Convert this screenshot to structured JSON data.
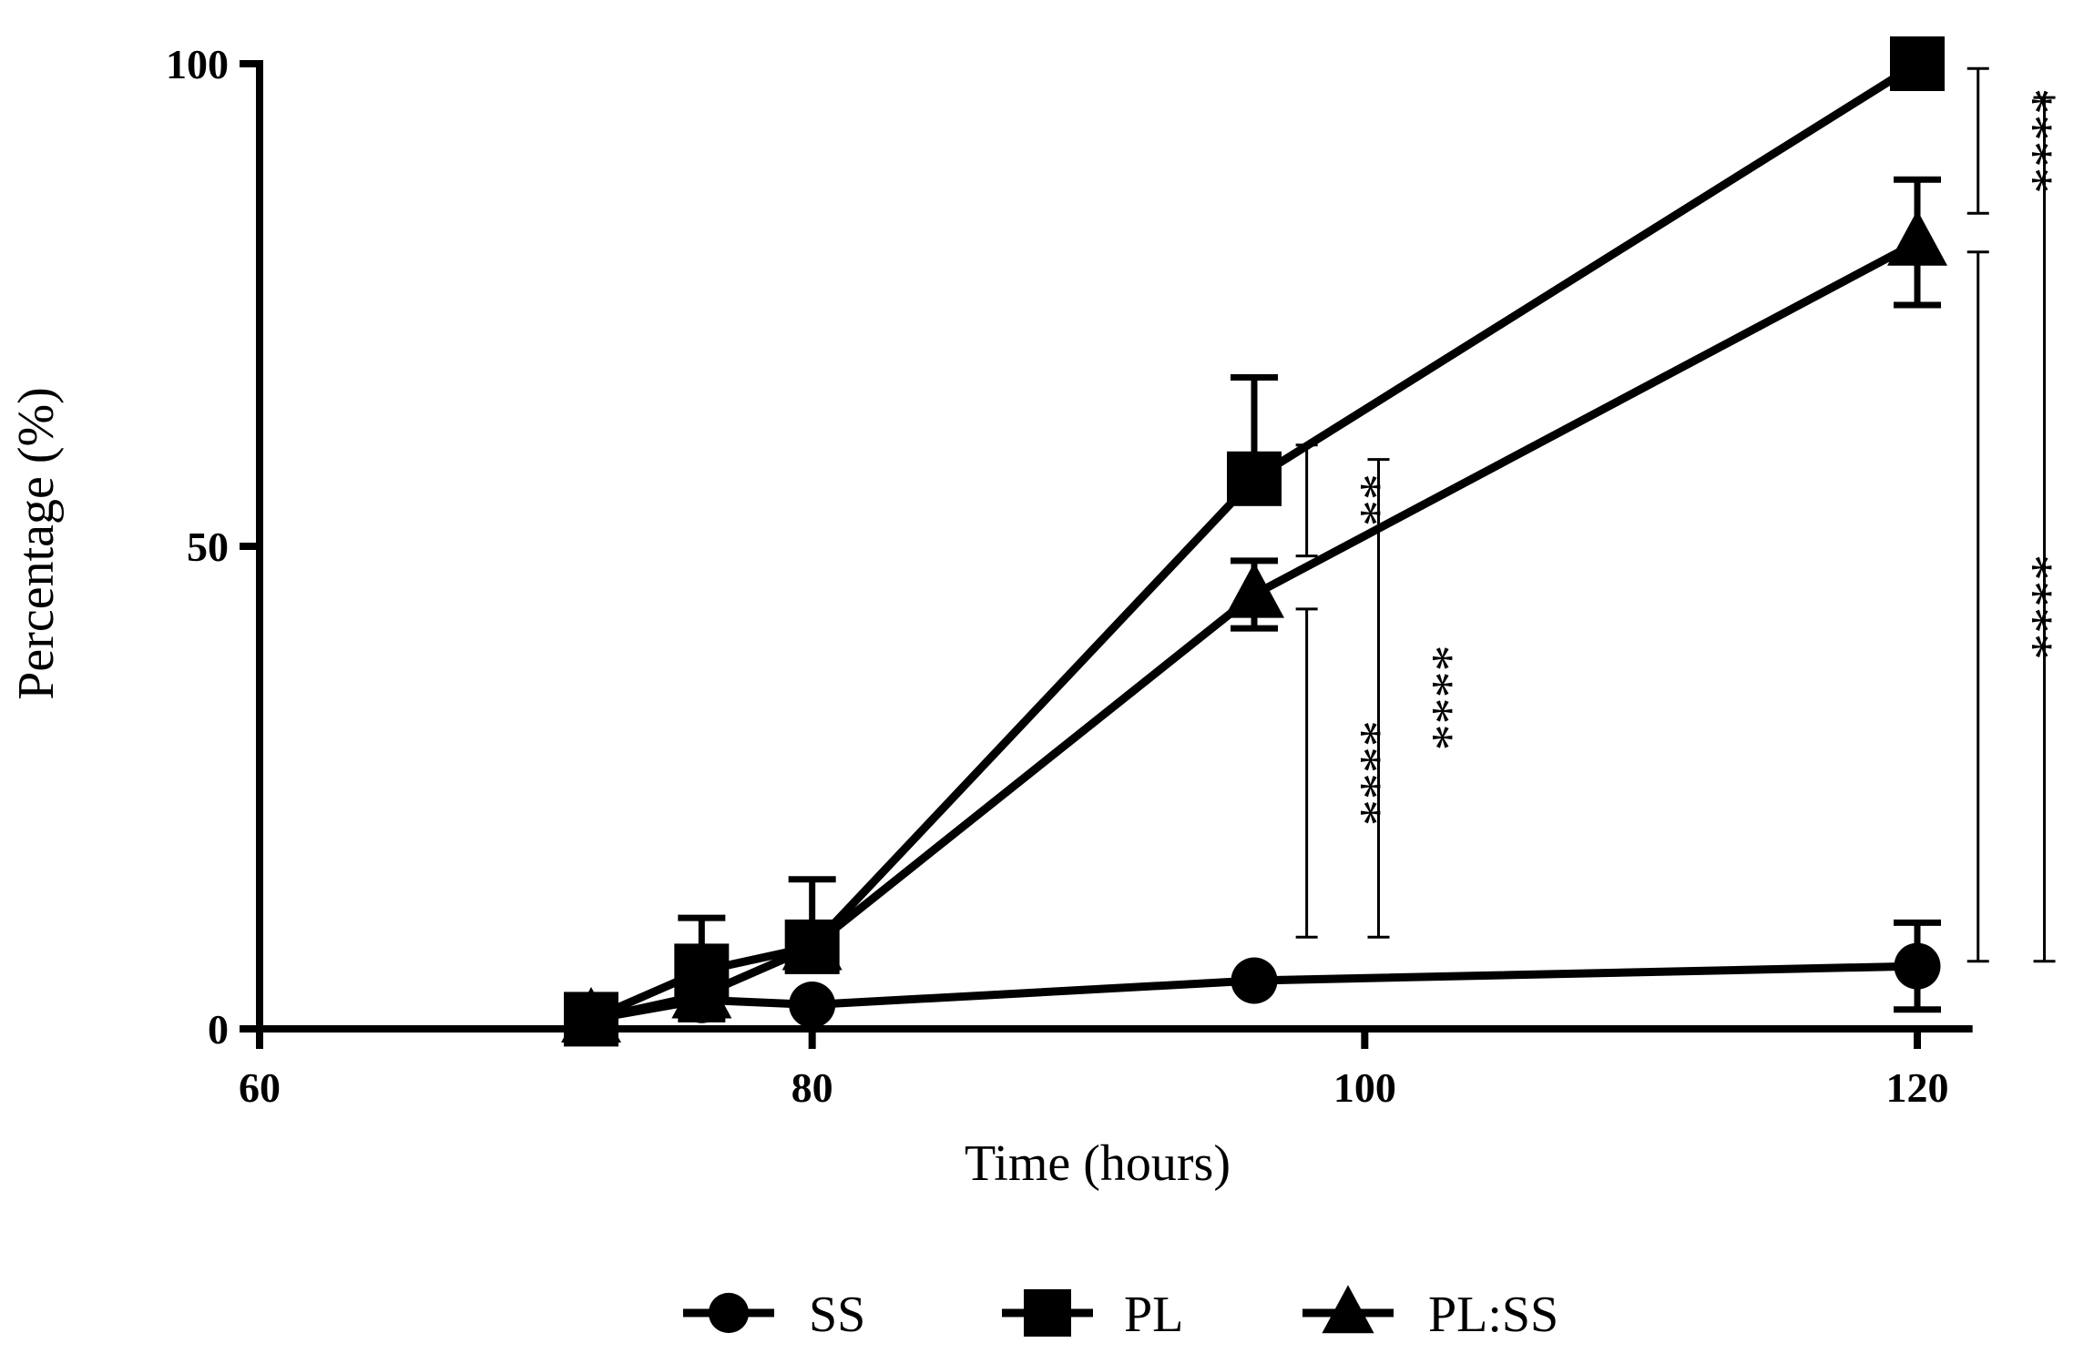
{
  "chart_data": {
    "type": "line",
    "title": "",
    "xlabel": "Time (hours)",
    "ylabel": "Percentage (%)",
    "xlim": [
      60,
      122
    ],
    "ylim": [
      0,
      100
    ],
    "xticks": [
      60,
      80,
      100,
      120
    ],
    "yticks": [
      0,
      50,
      100
    ],
    "grid": false,
    "legend_position": "bottom",
    "series": [
      {
        "name": "SS",
        "marker": "circle",
        "x": [
          72,
          76,
          80,
          96,
          120
        ],
        "y": [
          1,
          3,
          2.5,
          5,
          6.5
        ],
        "err": [
          0,
          2,
          0,
          0,
          4.5
        ]
      },
      {
        "name": "PL",
        "marker": "square",
        "x": [
          72,
          76,
          80,
          96,
          120
        ],
        "y": [
          1,
          6,
          8.5,
          57,
          100
        ],
        "err": [
          0,
          5.5,
          7,
          10.5,
          0
        ]
      },
      {
        "name": "PL:SS",
        "marker": "triangle",
        "x": [
          72,
          76,
          80,
          96,
          120
        ],
        "y": [
          1,
          3.5,
          8.5,
          45,
          81.5
        ],
        "err": [
          0,
          0,
          0,
          3.5,
          6.5
        ]
      }
    ],
    "significance": [
      {
        "label": "**",
        "x": 97.9,
        "y1": 49,
        "y2": 60.5,
        "text_x": 99.3,
        "text_y": 54.8
      },
      {
        "label": "****",
        "x": 97.9,
        "y1": 9.5,
        "y2": 43.5,
        "text_x": 99.3,
        "text_y": 26.5
      },
      {
        "label": "****",
        "x": 100.5,
        "y1": 9.5,
        "y2": 59,
        "text_x": 101.9,
        "text_y": 34.3
      },
      {
        "label": "****",
        "x": 122.2,
        "y1": 84.5,
        "y2": 99.5,
        "text_x": 123.6,
        "text_y": 92
      },
      {
        "label": "****",
        "x": 122.2,
        "y1": 7,
        "y2": 80.5,
        "text_x": 123.6,
        "text_y": 43.7
      },
      {
        "label": "****",
        "x": 124.6,
        "y1": 7,
        "y2": 96.5,
        "text_x": 126.0,
        "text_y": 56.3
      }
    ]
  }
}
